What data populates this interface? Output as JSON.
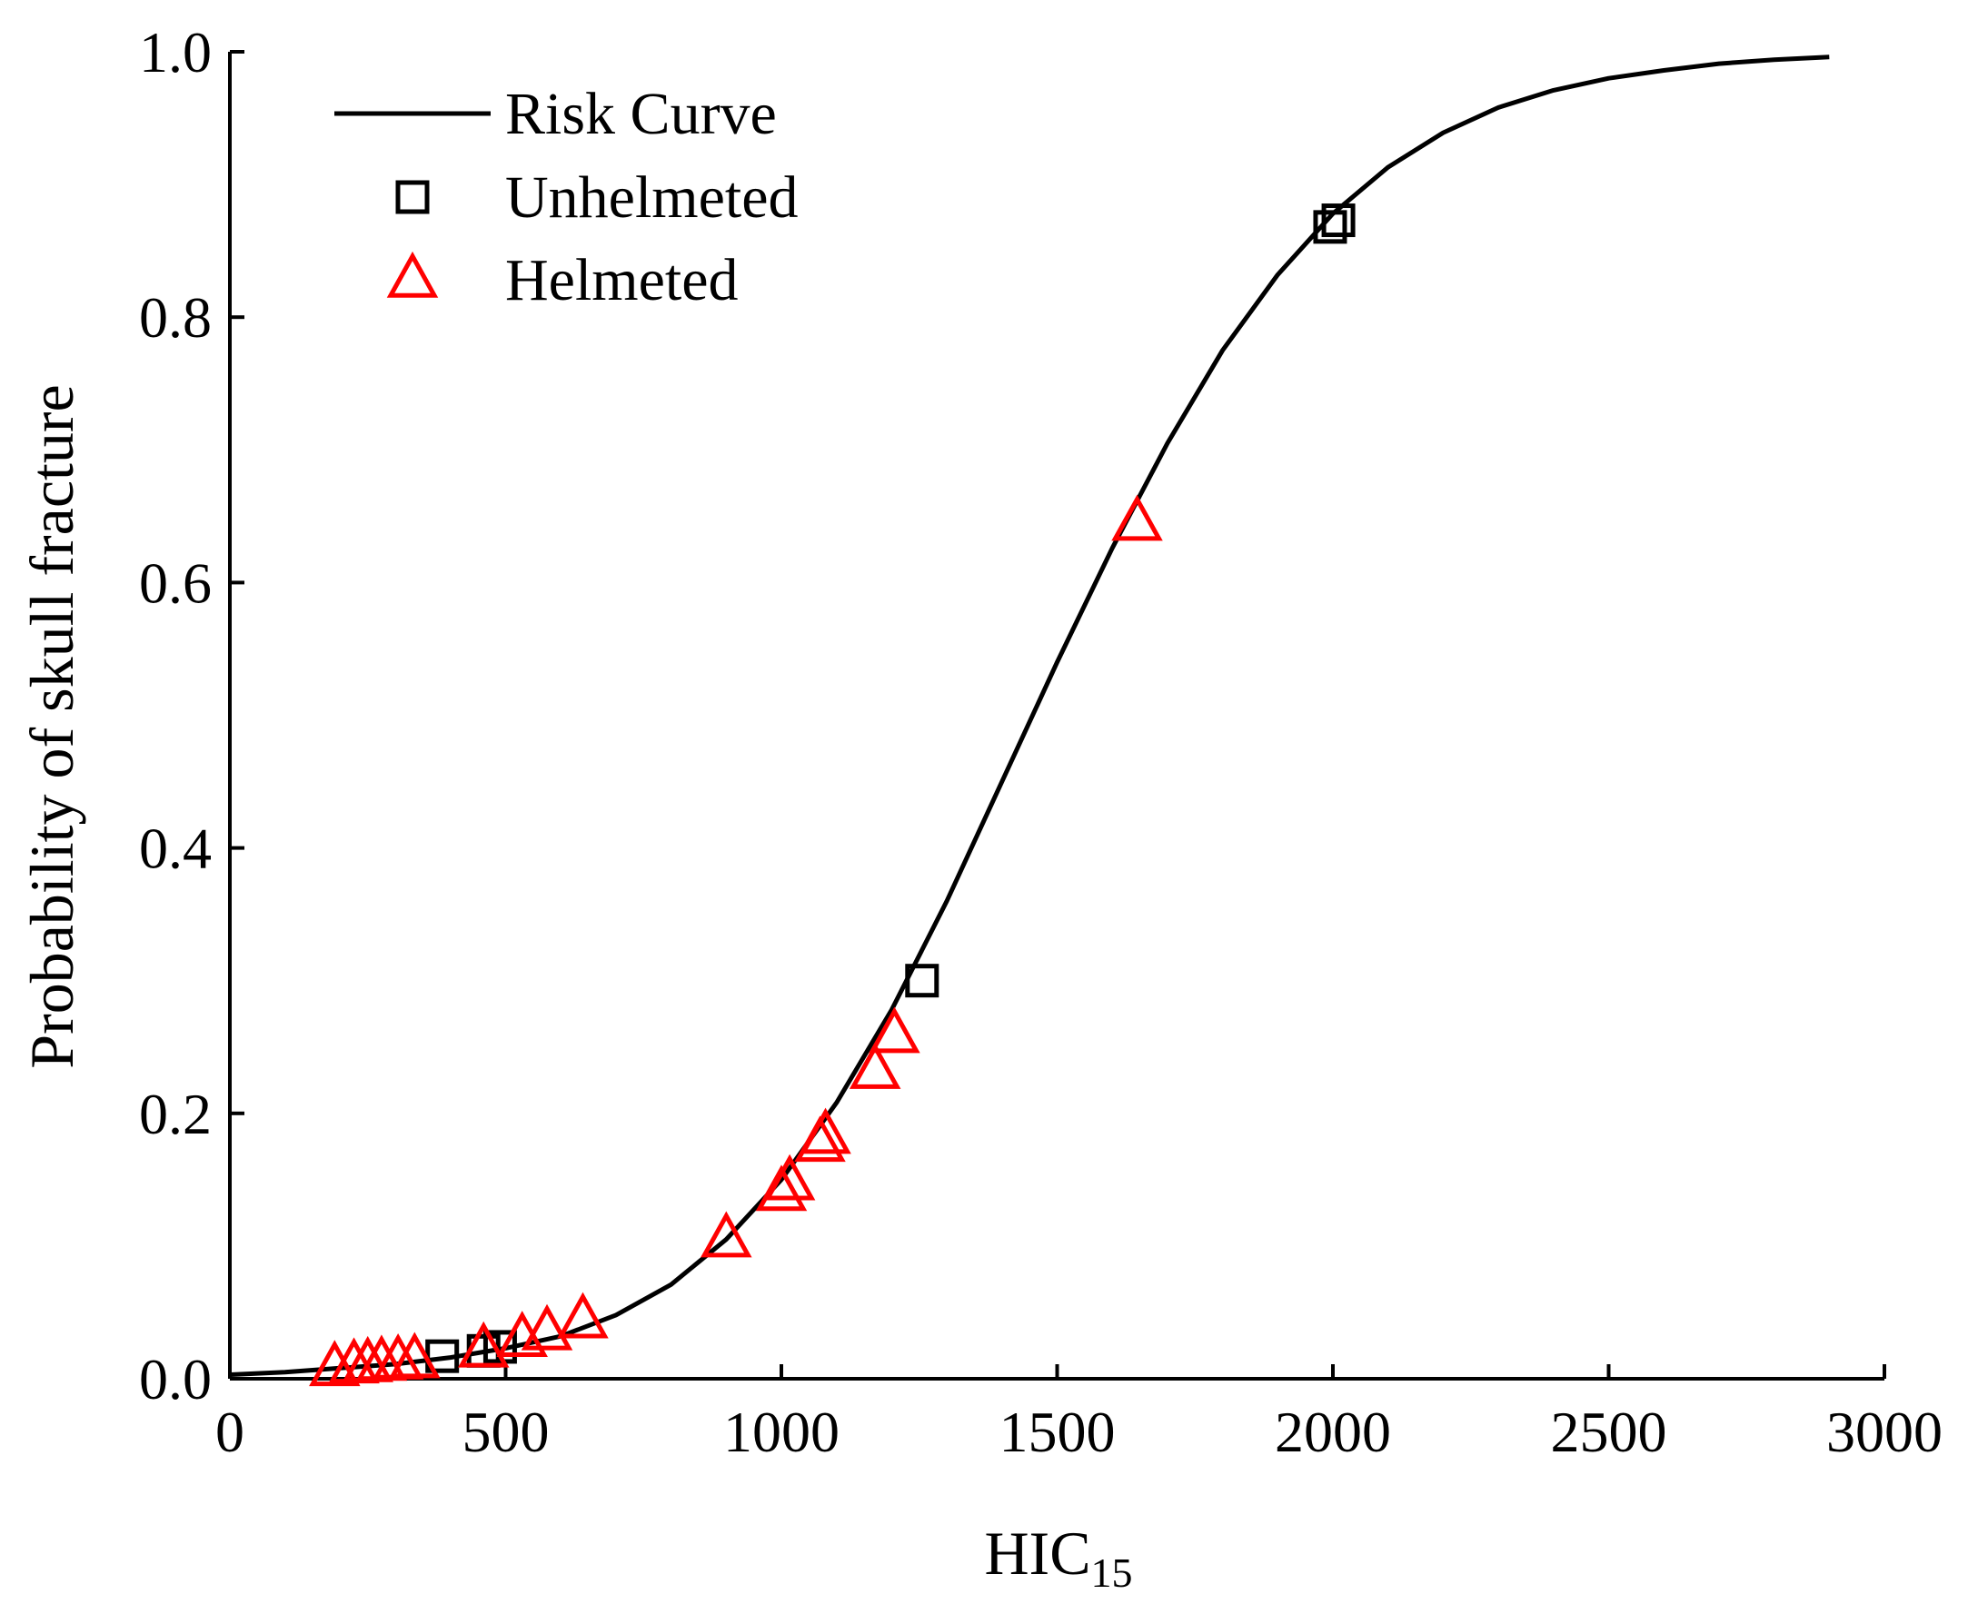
{
  "chart_data": {
    "type": "scatter",
    "title": "",
    "xlabel": "HIC",
    "xlabel_subscript": "15",
    "ylabel": "Probability of skull fracture",
    "xlim": [
      0,
      3000
    ],
    "ylim": [
      0,
      1.0
    ],
    "x_ticks": [
      0,
      500,
      1000,
      1500,
      2000,
      2500,
      3000
    ],
    "x_tick_labels": [
      "0",
      "500",
      "1000",
      "1500",
      "2000",
      "2500",
      "3000"
    ],
    "y_ticks": [
      0,
      0.2,
      0.4,
      0.6,
      0.8,
      1.0
    ],
    "y_tick_labels": [
      "0.0",
      "0.2",
      "0.4",
      "0.6",
      "0.8",
      "1.0"
    ],
    "grid": false,
    "legend_position": "top-left",
    "series": [
      {
        "name": "Risk Curve",
        "kind": "line",
        "color": "#000000",
        "points": [
          [
            0,
            0.003
          ],
          [
            100,
            0.005
          ],
          [
            200,
            0.008
          ],
          [
            300,
            0.011
          ],
          [
            400,
            0.016
          ],
          [
            500,
            0.023
          ],
          [
            600,
            0.032
          ],
          [
            700,
            0.048
          ],
          [
            800,
            0.071
          ],
          [
            900,
            0.105
          ],
          [
            1000,
            0.15
          ],
          [
            1100,
            0.208
          ],
          [
            1200,
            0.278
          ],
          [
            1300,
            0.36
          ],
          [
            1400,
            0.45
          ],
          [
            1500,
            0.54
          ],
          [
            1600,
            0.626
          ],
          [
            1700,
            0.705
          ],
          [
            1800,
            0.775
          ],
          [
            1900,
            0.832
          ],
          [
            2000,
            0.878
          ],
          [
            2100,
            0.913
          ],
          [
            2200,
            0.939
          ],
          [
            2300,
            0.958
          ],
          [
            2400,
            0.971
          ],
          [
            2500,
            0.98
          ],
          [
            2600,
            0.986
          ],
          [
            2700,
            0.991
          ],
          [
            2800,
            0.994
          ],
          [
            2900,
            0.996
          ]
        ]
      },
      {
        "name": "Unhelmeted",
        "kind": "marker",
        "marker": "square",
        "color": "#000000",
        "points": [
          [
            385,
            0.017
          ],
          [
            460,
            0.021
          ],
          [
            490,
            0.024
          ],
          [
            1255,
            0.3
          ],
          [
            1995,
            0.868
          ],
          [
            2010,
            0.873
          ]
        ]
      },
      {
        "name": "Helmeted",
        "kind": "marker",
        "marker": "triangle",
        "color": "#ff0000",
        "points": [
          [
            190,
            0.008
          ],
          [
            225,
            0.01
          ],
          [
            250,
            0.011
          ],
          [
            275,
            0.012
          ],
          [
            305,
            0.013
          ],
          [
            335,
            0.014
          ],
          [
            460,
            0.022
          ],
          [
            530,
            0.03
          ],
          [
            575,
            0.035
          ],
          [
            640,
            0.044
          ],
          [
            900,
            0.105
          ],
          [
            1000,
            0.14
          ],
          [
            1015,
            0.148
          ],
          [
            1070,
            0.177
          ],
          [
            1080,
            0.183
          ],
          [
            1170,
            0.232
          ],
          [
            1205,
            0.259
          ],
          [
            1645,
            0.645
          ]
        ]
      }
    ]
  }
}
